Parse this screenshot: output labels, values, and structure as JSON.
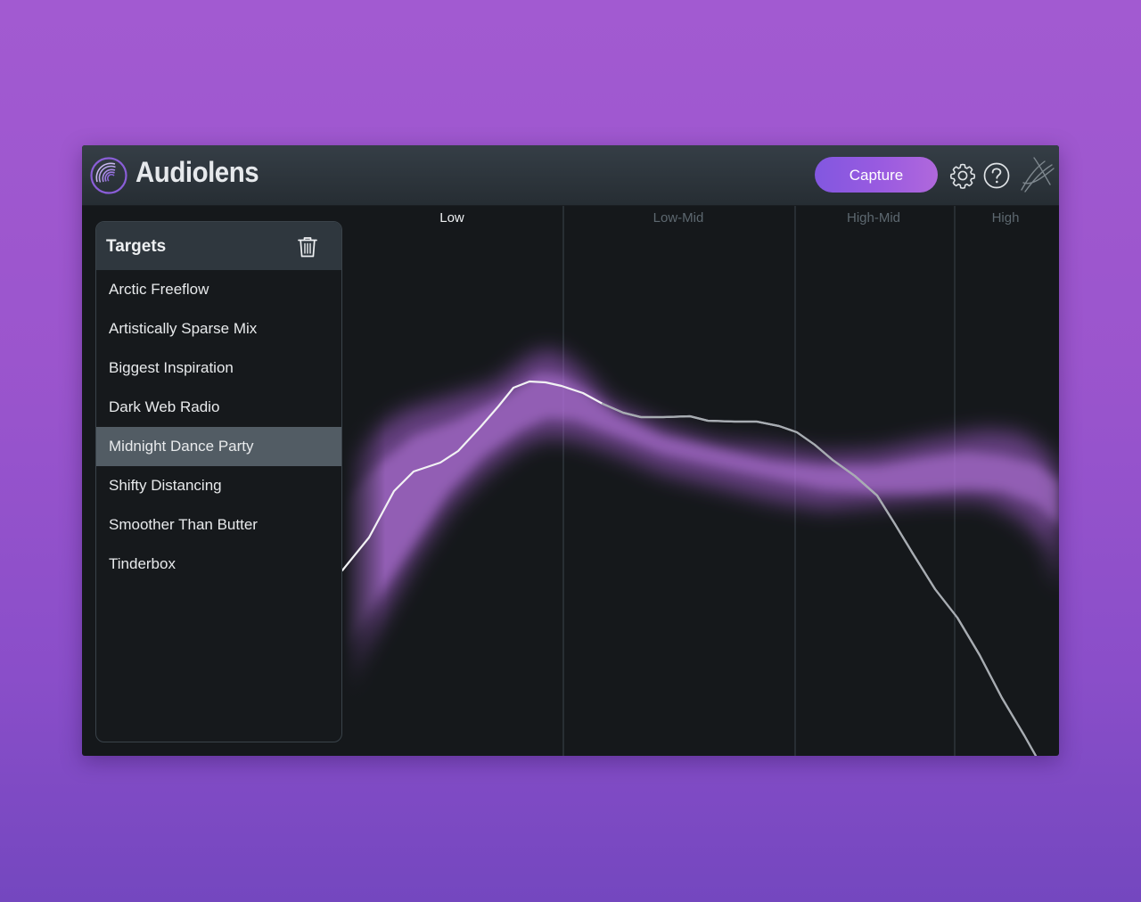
{
  "app": {
    "title": "Audiolens",
    "capture_label": "Capture",
    "accent": "#9a5be0"
  },
  "toolbar": {
    "icons": [
      "settings-gear-icon",
      "help-question-icon",
      "izotope-logo-icon"
    ]
  },
  "targets": {
    "title": "Targets",
    "delete_icon": "trash-icon",
    "items": [
      "Arctic Freeflow",
      "Artistically Sparse Mix",
      "Biggest Inspiration",
      "Dark Web Radio",
      "Midnight Dance Party",
      "Shifty Distancing",
      "Smoother Than Butter",
      "Tinderbox"
    ],
    "selected": "Midnight Dance Party"
  },
  "graph": {
    "bands": [
      "Low",
      "Low-Mid",
      "High-Mid",
      "High"
    ],
    "active_band": "Low",
    "target_color": "#b268d8",
    "curve_color": "#ffffff"
  }
}
